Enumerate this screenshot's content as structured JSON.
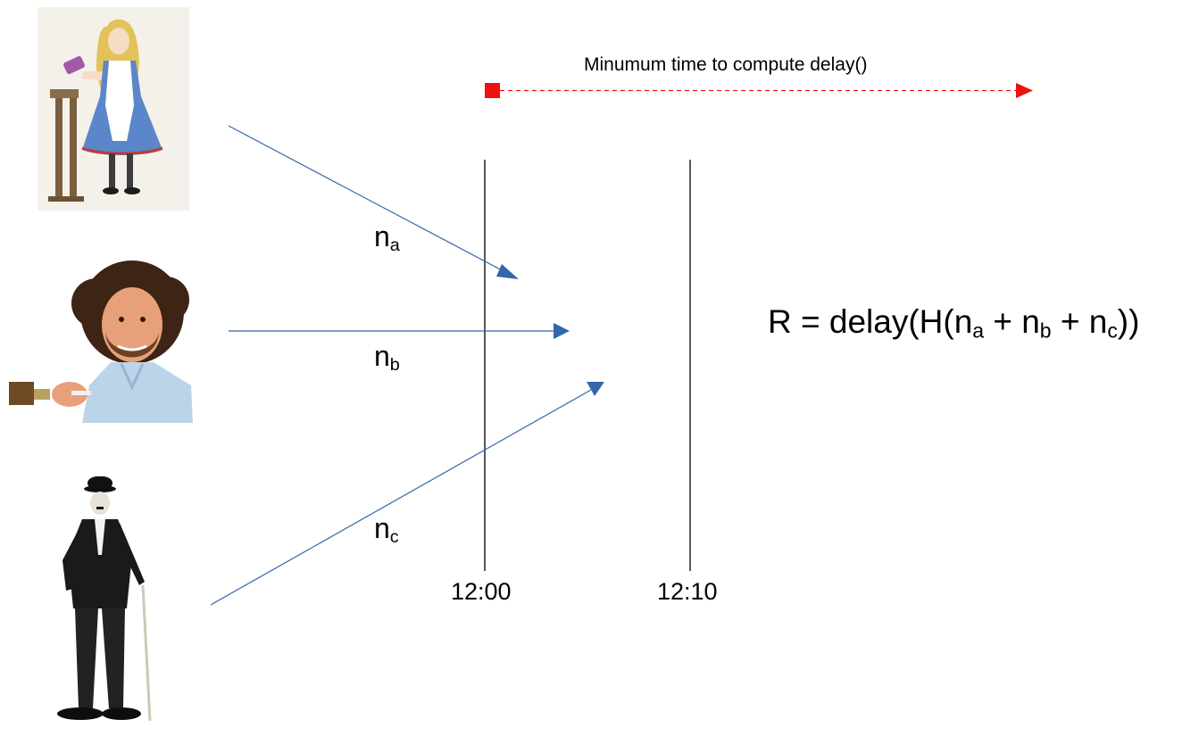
{
  "caption": "Minumum time to compute delay()",
  "participants": [
    {
      "name": "alice-illustration",
      "label": "n",
      "subscript": "a"
    },
    {
      "name": "bob-ross-photo",
      "label": "n",
      "subscript": "b"
    },
    {
      "name": "charlie-chaplin-photo",
      "label": "n",
      "subscript": "c"
    }
  ],
  "times": [
    "12:00",
    "12:10"
  ],
  "formula": {
    "prefix": "R = delay(H(",
    "n": "n",
    "sub_a": "a",
    "plus1": " + ",
    "sub_b": "b",
    "plus2": " + ",
    "sub_c": "c",
    "suffix": "))"
  },
  "colors": {
    "arrow": "#3366aa",
    "timing_arrow": "#ee1111",
    "line": "#000000"
  }
}
